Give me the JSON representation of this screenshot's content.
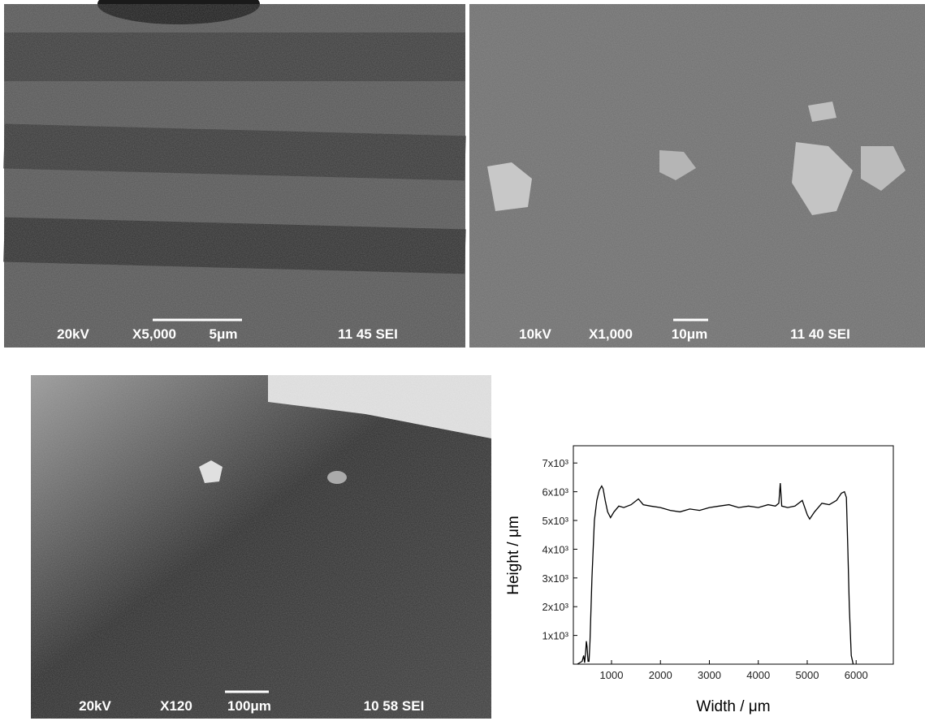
{
  "images": [
    {
      "voltage": "20kV",
      "magnification": "X5,000",
      "scale": "5μm",
      "code": "11 45 SEI"
    },
    {
      "voltage": "10kV",
      "magnification": "X1,000",
      "scale": "10μm",
      "code": "11 40 SEI"
    },
    {
      "voltage": "20kV",
      "magnification": "X120",
      "scale": "100μm",
      "code": "10 58 SEI"
    }
  ],
  "chart_data": {
    "type": "line",
    "x_label": "Width / μm",
    "y_label": "Height / μm",
    "x": [
      300,
      400,
      430,
      450,
      470,
      485,
      500,
      520,
      540,
      560,
      600,
      650,
      700,
      750,
      800,
      830,
      870,
      920,
      980,
      1050,
      1150,
      1250,
      1400,
      1550,
      1650,
      1800,
      2000,
      2200,
      2400,
      2600,
      2800,
      3000,
      3200,
      3400,
      3600,
      3800,
      4000,
      4200,
      4350,
      4420,
      4450,
      4480,
      4600,
      4750,
      4900,
      5000,
      5050,
      5150,
      5300,
      5450,
      5600,
      5700,
      5760,
      5800,
      5830,
      5860,
      5900,
      5940
    ],
    "values": [
      0,
      100,
      300,
      50,
      400,
      800,
      600,
      100,
      100,
      800,
      3000,
      5000,
      5700,
      6050,
      6200,
      6100,
      5700,
      5300,
      5100,
      5300,
      5500,
      5450,
      5550,
      5750,
      5550,
      5500,
      5450,
      5350,
      5300,
      5400,
      5350,
      5450,
      5500,
      5550,
      5450,
      5500,
      5450,
      5550,
      5500,
      5600,
      6300,
      5500,
      5450,
      5500,
      5700,
      5200,
      5050,
      5300,
      5600,
      5550,
      5700,
      5950,
      6000,
      5800,
      4000,
      2000,
      300,
      0
    ],
    "color": "#000000",
    "xlim": [
      220,
      6760
    ],
    "ylim": [
      0,
      7600
    ],
    "xticks": [
      1000,
      2000,
      3000,
      4000,
      5000,
      6000
    ],
    "yticks": [
      {
        "value": 1000,
        "label": "1x10³"
      },
      {
        "value": 2000,
        "label": "2x10³"
      },
      {
        "value": 3000,
        "label": "3x10³"
      },
      {
        "value": 4000,
        "label": "4x10³"
      },
      {
        "value": 5000,
        "label": "5x10³"
      },
      {
        "value": 6000,
        "label": "6x10³"
      },
      {
        "value": 7000,
        "label": "7x10³"
      }
    ]
  }
}
